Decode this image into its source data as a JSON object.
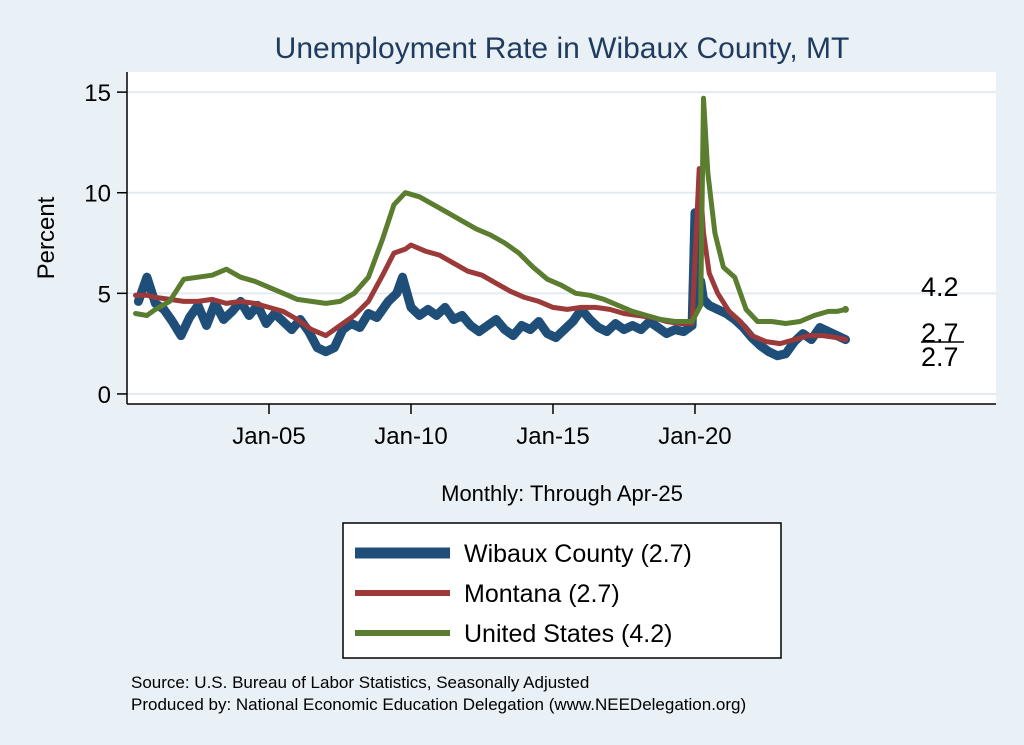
{
  "chart_data": {
    "type": "line",
    "title": "Unemployment Rate in Wibaux  County, MT",
    "ylabel": "Percent",
    "xlabel": "Monthly: Through Apr-25",
    "ylim": [
      -0.5,
      16
    ],
    "xlim": [
      2000.0,
      2030.6
    ],
    "yticks": [
      0,
      5,
      10,
      15
    ],
    "xticks": [
      {
        "label": "Jan-05",
        "x": 2005.0
      },
      {
        "label": "Jan-10",
        "x": 2010.0
      },
      {
        "label": "Jan-15",
        "x": 2015.0
      },
      {
        "label": "Jan-20",
        "x": 2020.0
      }
    ],
    "grid": true,
    "legend_position": "bottom",
    "series": [
      {
        "name": "Wibaux  County (2.7)",
        "color": "#1f4e79",
        "end_label": "2.7",
        "points": [
          [
            2000.4,
            4.6
          ],
          [
            2000.7,
            5.8
          ],
          [
            2001.0,
            4.5
          ],
          [
            2001.3,
            4.2
          ],
          [
            2001.6,
            3.6
          ],
          [
            2001.9,
            2.9
          ],
          [
            2002.2,
            3.8
          ],
          [
            2002.5,
            4.4
          ],
          [
            2002.8,
            3.4
          ],
          [
            2003.1,
            4.5
          ],
          [
            2003.4,
            3.7
          ],
          [
            2003.7,
            4.1
          ],
          [
            2004.0,
            4.6
          ],
          [
            2004.3,
            3.9
          ],
          [
            2004.6,
            4.4
          ],
          [
            2004.9,
            3.5
          ],
          [
            2005.2,
            4.0
          ],
          [
            2005.5,
            3.6
          ],
          [
            2005.8,
            3.2
          ],
          [
            2006.1,
            3.7
          ],
          [
            2006.4,
            3.1
          ],
          [
            2006.7,
            2.3
          ],
          [
            2007.0,
            2.1
          ],
          [
            2007.3,
            2.3
          ],
          [
            2007.6,
            3.2
          ],
          [
            2007.9,
            3.5
          ],
          [
            2008.2,
            3.3
          ],
          [
            2008.5,
            4.0
          ],
          [
            2008.8,
            3.8
          ],
          [
            2009.2,
            4.6
          ],
          [
            2009.5,
            5.0
          ],
          [
            2009.7,
            5.8
          ],
          [
            2010.0,
            4.3
          ],
          [
            2010.3,
            3.9
          ],
          [
            2010.6,
            4.2
          ],
          [
            2010.9,
            3.9
          ],
          [
            2011.2,
            4.3
          ],
          [
            2011.5,
            3.7
          ],
          [
            2011.8,
            3.9
          ],
          [
            2012.1,
            3.4
          ],
          [
            2012.4,
            3.1
          ],
          [
            2012.7,
            3.4
          ],
          [
            2013.0,
            3.7
          ],
          [
            2013.3,
            3.2
          ],
          [
            2013.6,
            2.9
          ],
          [
            2013.9,
            3.4
          ],
          [
            2014.2,
            3.2
          ],
          [
            2014.5,
            3.6
          ],
          [
            2014.8,
            3.0
          ],
          [
            2015.1,
            2.8
          ],
          [
            2015.4,
            3.2
          ],
          [
            2015.7,
            3.6
          ],
          [
            2016.0,
            4.2
          ],
          [
            2016.3,
            3.7
          ],
          [
            2016.6,
            3.3
          ],
          [
            2016.9,
            3.1
          ],
          [
            2017.2,
            3.5
          ],
          [
            2017.5,
            3.2
          ],
          [
            2017.8,
            3.4
          ],
          [
            2018.1,
            3.2
          ],
          [
            2018.4,
            3.6
          ],
          [
            2018.7,
            3.3
          ],
          [
            2019.0,
            3.0
          ],
          [
            2019.3,
            3.2
          ],
          [
            2019.6,
            3.1
          ],
          [
            2019.9,
            3.4
          ],
          [
            2020.0,
            9.0
          ],
          [
            2020.08,
            4.5
          ],
          [
            2020.2,
            5.6
          ],
          [
            2020.3,
            4.7
          ],
          [
            2020.5,
            4.4
          ],
          [
            2020.8,
            4.2
          ],
          [
            2021.1,
            4.0
          ],
          [
            2021.4,
            3.7
          ],
          [
            2021.7,
            3.3
          ],
          [
            2022.0,
            2.8
          ],
          [
            2022.3,
            2.4
          ],
          [
            2022.6,
            2.1
          ],
          [
            2022.9,
            1.9
          ],
          [
            2023.2,
            2.0
          ],
          [
            2023.5,
            2.6
          ],
          [
            2023.8,
            3.0
          ],
          [
            2024.1,
            2.7
          ],
          [
            2024.4,
            3.3
          ],
          [
            2024.7,
            3.1
          ],
          [
            2025.0,
            2.9
          ],
          [
            2025.3,
            2.7
          ]
        ]
      },
      {
        "name": "Montana (2.7)",
        "color": "#9c3a3a",
        "end_label": "2.7",
        "points": [
          [
            2000.3,
            4.9
          ],
          [
            2000.7,
            4.9
          ],
          [
            2001.0,
            4.8
          ],
          [
            2001.5,
            4.7
          ],
          [
            2002.0,
            4.6
          ],
          [
            2002.5,
            4.6
          ],
          [
            2003.0,
            4.7
          ],
          [
            2003.5,
            4.5
          ],
          [
            2004.0,
            4.6
          ],
          [
            2004.5,
            4.5
          ],
          [
            2005.0,
            4.3
          ],
          [
            2005.5,
            4.1
          ],
          [
            2006.0,
            3.7
          ],
          [
            2006.5,
            3.2
          ],
          [
            2007.0,
            2.9
          ],
          [
            2007.5,
            3.4
          ],
          [
            2008.0,
            3.9
          ],
          [
            2008.5,
            4.6
          ],
          [
            2009.0,
            5.9
          ],
          [
            2009.4,
            7.0
          ],
          [
            2009.8,
            7.2
          ],
          [
            2010.0,
            7.4
          ],
          [
            2010.5,
            7.1
          ],
          [
            2011.0,
            6.9
          ],
          [
            2011.5,
            6.5
          ],
          [
            2012.0,
            6.1
          ],
          [
            2012.5,
            5.9
          ],
          [
            2013.0,
            5.5
          ],
          [
            2013.5,
            5.1
          ],
          [
            2014.0,
            4.8
          ],
          [
            2014.5,
            4.6
          ],
          [
            2015.0,
            4.3
          ],
          [
            2015.5,
            4.2
          ],
          [
            2016.0,
            4.3
          ],
          [
            2016.5,
            4.3
          ],
          [
            2017.0,
            4.2
          ],
          [
            2017.5,
            4.0
          ],
          [
            2018.0,
            3.9
          ],
          [
            2018.5,
            3.8
          ],
          [
            2019.0,
            3.6
          ],
          [
            2019.5,
            3.5
          ],
          [
            2019.9,
            3.5
          ],
          [
            2020.15,
            11.2
          ],
          [
            2020.3,
            8.0
          ],
          [
            2020.5,
            6.0
          ],
          [
            2020.8,
            5.0
          ],
          [
            2021.2,
            4.1
          ],
          [
            2021.6,
            3.6
          ],
          [
            2022.0,
            2.9
          ],
          [
            2022.5,
            2.6
          ],
          [
            2023.0,
            2.5
          ],
          [
            2023.5,
            2.7
          ],
          [
            2024.0,
            2.9
          ],
          [
            2024.5,
            2.9
          ],
          [
            2025.0,
            2.8
          ],
          [
            2025.3,
            2.7
          ]
        ]
      },
      {
        "name": "United States (4.2)",
        "color": "#5a7d30",
        "end_label": "4.2",
        "points": [
          [
            2000.3,
            4.0
          ],
          [
            2000.7,
            3.9
          ],
          [
            2001.0,
            4.2
          ],
          [
            2001.5,
            4.6
          ],
          [
            2002.0,
            5.7
          ],
          [
            2002.5,
            5.8
          ],
          [
            2003.0,
            5.9
          ],
          [
            2003.5,
            6.2
          ],
          [
            2004.0,
            5.8
          ],
          [
            2004.5,
            5.6
          ],
          [
            2005.0,
            5.3
          ],
          [
            2005.5,
            5.0
          ],
          [
            2006.0,
            4.7
          ],
          [
            2006.5,
            4.6
          ],
          [
            2007.0,
            4.5
          ],
          [
            2007.5,
            4.6
          ],
          [
            2008.0,
            5.0
          ],
          [
            2008.5,
            5.8
          ],
          [
            2009.0,
            7.7
          ],
          [
            2009.4,
            9.4
          ],
          [
            2009.8,
            10.0
          ],
          [
            2010.3,
            9.8
          ],
          [
            2010.8,
            9.4
          ],
          [
            2011.3,
            9.0
          ],
          [
            2011.8,
            8.6
          ],
          [
            2012.3,
            8.2
          ],
          [
            2012.8,
            7.9
          ],
          [
            2013.3,
            7.5
          ],
          [
            2013.8,
            7.0
          ],
          [
            2014.3,
            6.3
          ],
          [
            2014.8,
            5.7
          ],
          [
            2015.3,
            5.4
          ],
          [
            2015.8,
            5.0
          ],
          [
            2016.3,
            4.9
          ],
          [
            2016.8,
            4.7
          ],
          [
            2017.3,
            4.4
          ],
          [
            2017.8,
            4.1
          ],
          [
            2018.3,
            3.9
          ],
          [
            2018.8,
            3.7
          ],
          [
            2019.3,
            3.6
          ],
          [
            2019.9,
            3.6
          ],
          [
            2020.2,
            4.4
          ],
          [
            2020.3,
            14.7
          ],
          [
            2020.45,
            11.0
          ],
          [
            2020.7,
            8.0
          ],
          [
            2021.0,
            6.3
          ],
          [
            2021.4,
            5.8
          ],
          [
            2021.8,
            4.2
          ],
          [
            2022.2,
            3.6
          ],
          [
            2022.7,
            3.6
          ],
          [
            2023.2,
            3.5
          ],
          [
            2023.7,
            3.6
          ],
          [
            2024.2,
            3.9
          ],
          [
            2024.7,
            4.1
          ],
          [
            2025.0,
            4.1
          ],
          [
            2025.3,
            4.2
          ]
        ]
      }
    ]
  },
  "legend_title": "",
  "source_note": "Source: U.S. Bureau of Labor Statistics, Seasonally Adjusted",
  "producer_note": "Produced by: National Economic Education Delegation (www.NEEDelegation.org)"
}
